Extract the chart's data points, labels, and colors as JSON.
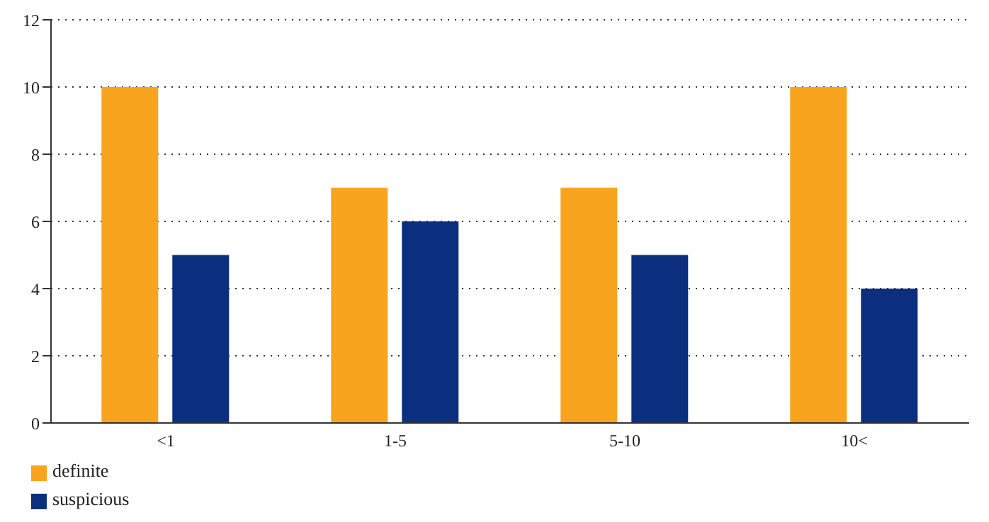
{
  "chart_data": {
    "type": "bar",
    "categories": [
      "<1",
      "1-5",
      "5-10",
      "10<"
    ],
    "series": [
      {
        "name": "definite",
        "color": "#f9a41e",
        "values": [
          10,
          7,
          7,
          10
        ]
      },
      {
        "name": "suspicious",
        "color": "#0b2f7e",
        "values": [
          5,
          6,
          5,
          4
        ]
      }
    ],
    "ylim": [
      0,
      12
    ],
    "yticks": [
      0,
      2,
      4,
      6,
      8,
      10,
      12
    ],
    "grid": "y",
    "legend": "bottom left"
  }
}
